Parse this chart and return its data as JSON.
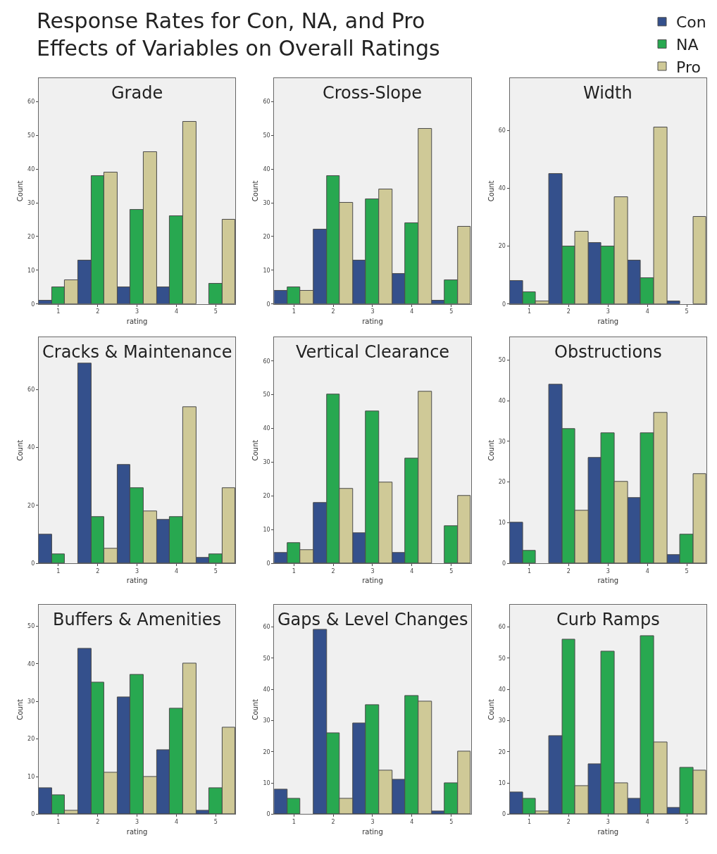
{
  "chart_data": [
    {
      "type": "other",
      "title": "Response Rates for Con, NA, and Pro\nEffects of Variables on Overall Ratings"
    },
    {
      "type": "bar",
      "title": "Grade",
      "xlabel": "rating",
      "ylabel": "Count",
      "categories": [
        "1",
        "2",
        "3",
        "4",
        "5"
      ],
      "ylim": [
        0,
        67
      ],
      "yticks": [
        0,
        10,
        20,
        30,
        40,
        50,
        60
      ],
      "legend": "top right",
      "series": [
        {
          "name": "Con",
          "color": "#34508c",
          "values": [
            1,
            13,
            5,
            5,
            0
          ]
        },
        {
          "name": "NA",
          "color": "#28a850",
          "values": [
            5,
            38,
            28,
            26,
            6
          ]
        },
        {
          "name": "Pro",
          "color": "#cfc997",
          "values": [
            7,
            39,
            45,
            54,
            25
          ]
        }
      ]
    },
    {
      "type": "bar",
      "title": "Cross-Slope",
      "xlabel": "rating",
      "ylabel": "Count",
      "categories": [
        "1",
        "2",
        "3",
        "4",
        "5"
      ],
      "ylim": [
        0,
        67
      ],
      "yticks": [
        0,
        10,
        20,
        30,
        40,
        50,
        60
      ],
      "series": [
        {
          "color": "#34508c",
          "values": [
            4,
            22,
            13,
            9,
            1
          ]
        },
        {
          "color": "#28a850",
          "values": [
            5,
            38,
            31,
            24,
            7
          ]
        },
        {
          "color": "#cfc997",
          "values": [
            4,
            30,
            34,
            52,
            23
          ]
        }
      ]
    },
    {
      "type": "bar",
      "title": "Width",
      "xlabel": "rating",
      "ylabel": "Count",
      "categories": [
        "1",
        "2",
        "3",
        "4",
        "5"
      ],
      "ylim": [
        0,
        78
      ],
      "yticks": [
        0,
        20,
        40,
        60
      ],
      "series": [
        {
          "color": "#34508c",
          "values": [
            8,
            45,
            21,
            15,
            1
          ]
        },
        {
          "color": "#28a850",
          "values": [
            4,
            20,
            20,
            9,
            0
          ]
        },
        {
          "color": "#cfc997",
          "values": [
            1,
            25,
            37,
            61,
            30
          ]
        }
      ]
    },
    {
      "type": "bar",
      "title": "Cracks & Maintenance",
      "xlabel": "rating",
      "ylabel": "Count",
      "categories": [
        "1",
        "2",
        "3",
        "4",
        "5"
      ],
      "ylim": [
        0,
        78
      ],
      "yticks": [
        0,
        20,
        40,
        60
      ],
      "series": [
        {
          "color": "#34508c",
          "values": [
            10,
            69,
            34,
            15,
            2
          ]
        },
        {
          "color": "#28a850",
          "values": [
            3,
            16,
            26,
            16,
            3
          ]
        },
        {
          "color": "#cfc997",
          "values": [
            0,
            5,
            18,
            54,
            26
          ]
        }
      ]
    },
    {
      "type": "bar",
      "title": "Vertical Clearance",
      "xlabel": "rating",
      "ylabel": "Count",
      "categories": [
        "1",
        "2",
        "3",
        "4",
        "5"
      ],
      "ylim": [
        0,
        67
      ],
      "yticks": [
        0,
        10,
        20,
        30,
        40,
        50,
        60
      ],
      "series": [
        {
          "color": "#34508c",
          "values": [
            3,
            18,
            9,
            3,
            0
          ]
        },
        {
          "color": "#28a850",
          "values": [
            6,
            50,
            45,
            31,
            11
          ]
        },
        {
          "color": "#cfc997",
          "values": [
            4,
            22,
            24,
            51,
            20
          ]
        }
      ]
    },
    {
      "type": "bar",
      "title": "Obstructions",
      "xlabel": "rating",
      "ylabel": "Count",
      "categories": [
        "1",
        "2",
        "3",
        "4",
        "5"
      ],
      "ylim": [
        0,
        55.6
      ],
      "yticks": [
        0,
        10,
        20,
        30,
        40,
        50
      ],
      "series": [
        {
          "color": "#34508c",
          "values": [
            10,
            44,
            26,
            16,
            2
          ]
        },
        {
          "color": "#28a850",
          "values": [
            3,
            33,
            32,
            32,
            7
          ]
        },
        {
          "color": "#cfc997",
          "values": [
            0,
            13,
            20,
            37,
            22
          ]
        }
      ]
    },
    {
      "type": "bar",
      "title": "Buffers & Amenities",
      "xlabel": "rating",
      "ylabel": "Count",
      "categories": [
        "1",
        "2",
        "3",
        "4",
        "5"
      ],
      "ylim": [
        0,
        55.6
      ],
      "yticks": [
        0,
        10,
        20,
        30,
        40,
        50
      ],
      "series": [
        {
          "color": "#34508c",
          "values": [
            7,
            44,
            31,
            17,
            1
          ]
        },
        {
          "color": "#28a850",
          "values": [
            5,
            35,
            37,
            28,
            7
          ]
        },
        {
          "color": "#cfc997",
          "values": [
            1,
            11,
            10,
            40,
            23
          ]
        }
      ]
    },
    {
      "type": "bar",
      "title": "Gaps & Level Changes",
      "xlabel": "rating",
      "ylabel": "Count",
      "categories": [
        "1",
        "2",
        "3",
        "4",
        "5"
      ],
      "ylim": [
        0,
        67
      ],
      "yticks": [
        0,
        10,
        20,
        30,
        40,
        50,
        60
      ],
      "series": [
        {
          "color": "#34508c",
          "values": [
            8,
            59,
            29,
            11,
            1
          ]
        },
        {
          "color": "#28a850",
          "values": [
            5,
            26,
            35,
            38,
            10
          ]
        },
        {
          "color": "#cfc997",
          "values": [
            0,
            5,
            14,
            36,
            20
          ]
        }
      ]
    },
    {
      "type": "bar",
      "title": "Curb Ramps",
      "xlabel": "rating",
      "ylabel": "Count",
      "categories": [
        "1",
        "2",
        "3",
        "4",
        "5"
      ],
      "ylim": [
        0,
        67
      ],
      "yticks": [
        0,
        10,
        20,
        30,
        40,
        50,
        60
      ],
      "series": [
        {
          "color": "#34508c",
          "values": [
            7,
            25,
            16,
            5,
            2
          ]
        },
        {
          "color": "#28a850",
          "values": [
            5,
            56,
            52,
            57,
            15
          ]
        },
        {
          "color": "#cfc997",
          "values": [
            1,
            9,
            10,
            23,
            14
          ]
        }
      ]
    }
  ]
}
